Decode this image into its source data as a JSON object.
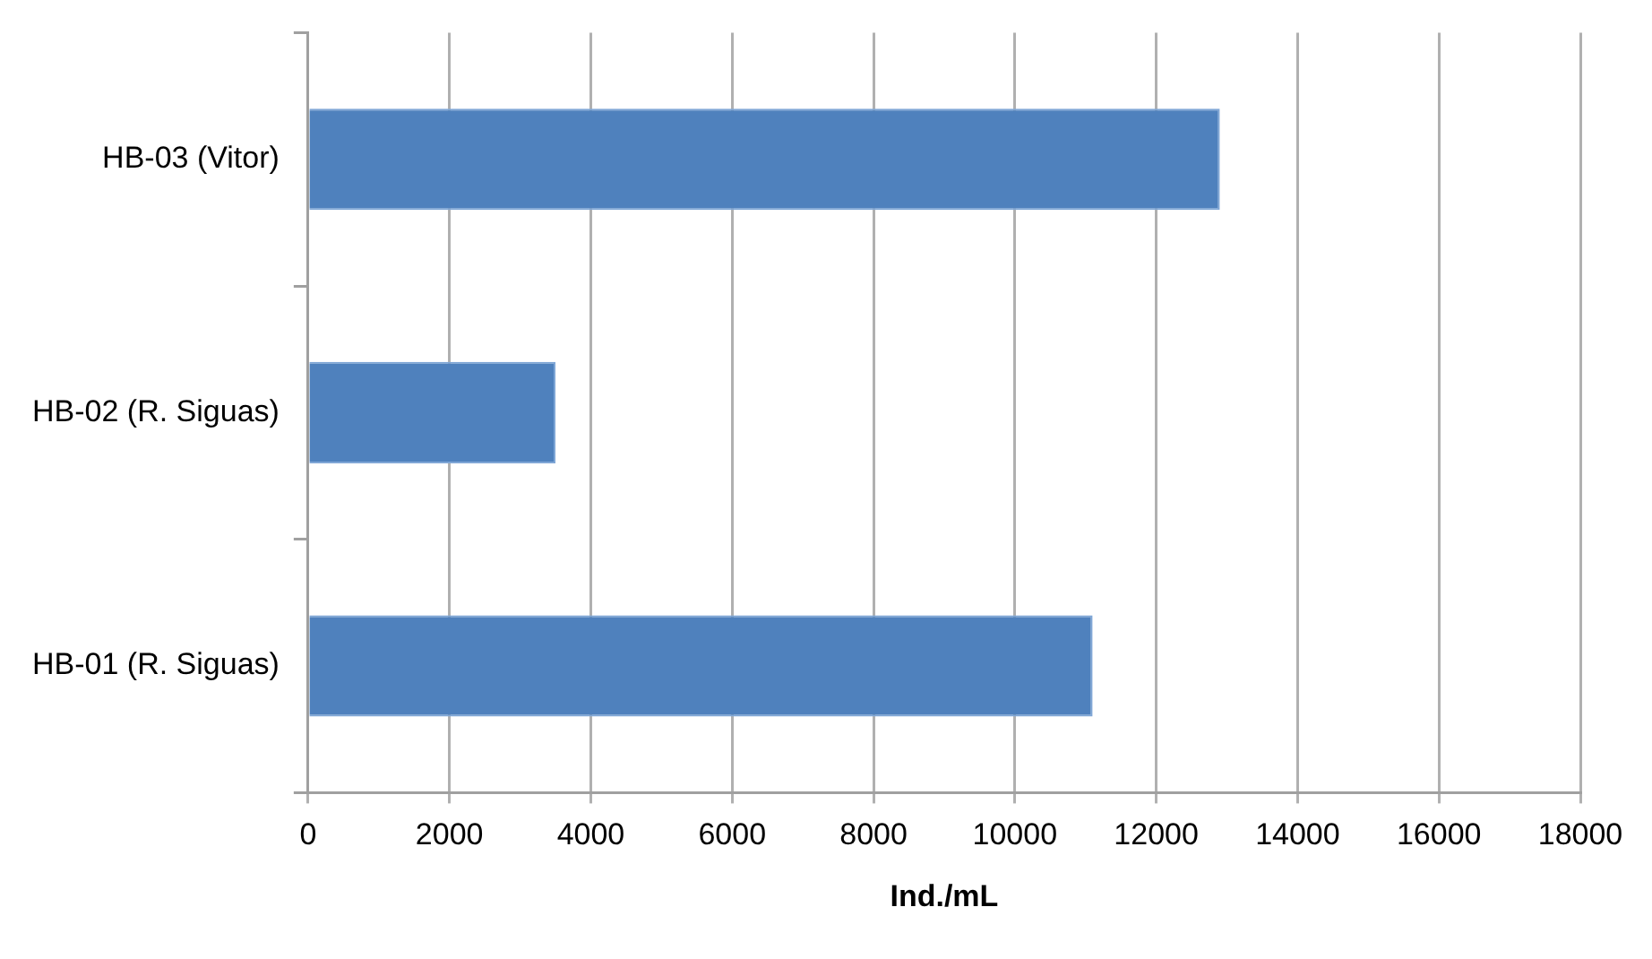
{
  "chart_data": {
    "type": "bar",
    "orientation": "horizontal",
    "xlabel": "Ind./mL",
    "categories": [
      "HB-03 (Vitor)",
      "HB-02 (R. Siguas)",
      "HB-01 (R. Siguas)"
    ],
    "values": [
      12900,
      3500,
      11100
    ],
    "color": "#4f81bd",
    "xlim": [
      0,
      18000
    ],
    "xticks": [
      0,
      2000,
      4000,
      6000,
      8000,
      10000,
      12000,
      14000,
      16000,
      18000
    ],
    "grid": "x",
    "legend": false
  }
}
